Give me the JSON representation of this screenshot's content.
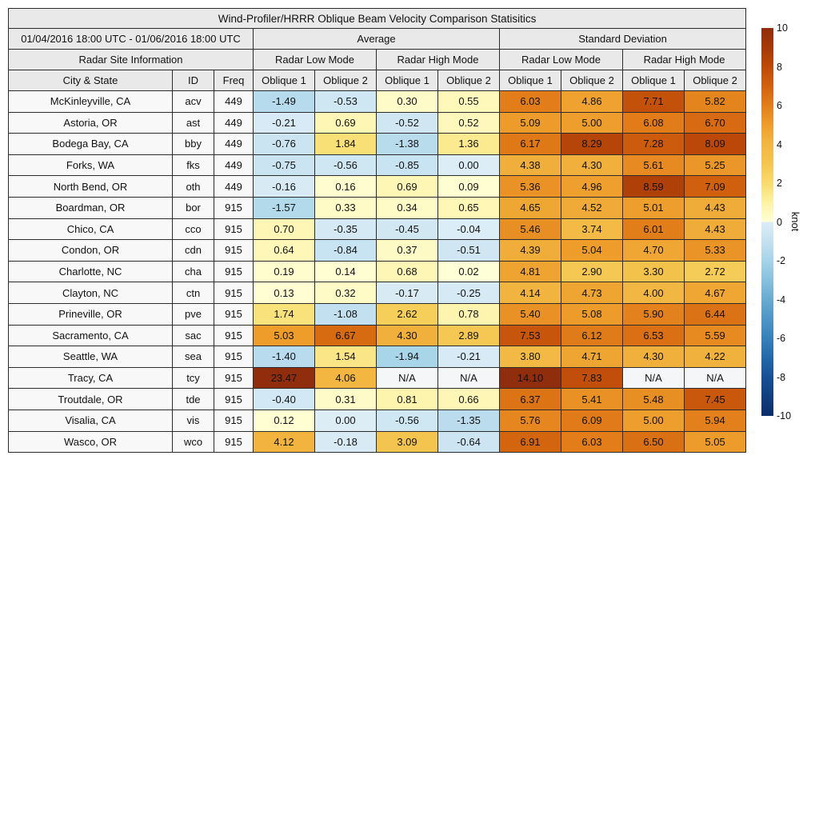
{
  "chart_data": {
    "type": "heatmap_table",
    "title": "Wind-Profiler/HRRR Oblique Beam Velocity Comparison Statisitics",
    "header": {
      "date_range": "01/04/2016 18:00 UTC - 01/06/2016 18:00 UTC",
      "group_average": "Average",
      "group_std": "Standard Deviation",
      "site_info": "Radar Site Information",
      "mode_low": "Radar Low Mode",
      "mode_high": "Radar High Mode",
      "col_city": "City & State",
      "col_id": "ID",
      "col_freq": "Freq",
      "col_oblique1": "Oblique 1",
      "col_oblique2": "Oblique 2"
    },
    "value_columns": [
      "avg_low_oblique1",
      "avg_low_oblique2",
      "avg_high_oblique1",
      "avg_high_oblique2",
      "std_low_oblique1",
      "std_low_oblique2",
      "std_high_oblique1",
      "std_high_oblique2"
    ],
    "rows": [
      {
        "city": "McKinleyville, CA",
        "id": "acv",
        "freq": "449",
        "values": [
          "-1.49",
          "-0.53",
          "0.30",
          "0.55",
          "6.03",
          "4.86",
          "7.71",
          "5.82"
        ]
      },
      {
        "city": "Astoria, OR",
        "id": "ast",
        "freq": "449",
        "values": [
          "-0.21",
          "0.69",
          "-0.52",
          "0.52",
          "5.09",
          "5.00",
          "6.08",
          "6.70"
        ]
      },
      {
        "city": "Bodega Bay, CA",
        "id": "bby",
        "freq": "449",
        "values": [
          "-0.76",
          "1.84",
          "-1.38",
          "1.36",
          "6.17",
          "8.29",
          "7.28",
          "8.09"
        ]
      },
      {
        "city": "Forks, WA",
        "id": "fks",
        "freq": "449",
        "values": [
          "-0.75",
          "-0.56",
          "-0.85",
          "0.00",
          "4.38",
          "4.30",
          "5.61",
          "5.25"
        ]
      },
      {
        "city": "North Bend, OR",
        "id": "oth",
        "freq": "449",
        "values": [
          "-0.16",
          "0.16",
          "0.69",
          "0.09",
          "5.36",
          "4.96",
          "8.59",
          "7.09"
        ]
      },
      {
        "city": "Boardman, OR",
        "id": "bor",
        "freq": "915",
        "values": [
          "-1.57",
          "0.33",
          "0.34",
          "0.65",
          "4.65",
          "4.52",
          "5.01",
          "4.43"
        ]
      },
      {
        "city": "Chico, CA",
        "id": "cco",
        "freq": "915",
        "values": [
          "0.70",
          "-0.35",
          "-0.45",
          "-0.04",
          "5.46",
          "3.74",
          "6.01",
          "4.43"
        ]
      },
      {
        "city": "Condon, OR",
        "id": "cdn",
        "freq": "915",
        "values": [
          "0.64",
          "-0.84",
          "0.37",
          "-0.51",
          "4.39",
          "5.04",
          "4.70",
          "5.33"
        ]
      },
      {
        "city": "Charlotte, NC",
        "id": "cha",
        "freq": "915",
        "values": [
          "0.19",
          "0.14",
          "0.68",
          "0.02",
          "4.81",
          "2.90",
          "3.30",
          "2.72"
        ]
      },
      {
        "city": "Clayton, NC",
        "id": "ctn",
        "freq": "915",
        "values": [
          "0.13",
          "0.32",
          "-0.17",
          "-0.25",
          "4.14",
          "4.73",
          "4.00",
          "4.67"
        ]
      },
      {
        "city": "Prineville, OR",
        "id": "pve",
        "freq": "915",
        "values": [
          "1.74",
          "-1.08",
          "2.62",
          "0.78",
          "5.40",
          "5.08",
          "5.90",
          "6.44"
        ]
      },
      {
        "city": "Sacramento, CA",
        "id": "sac",
        "freq": "915",
        "values": [
          "5.03",
          "6.67",
          "4.30",
          "2.89",
          "7.53",
          "6.12",
          "6.53",
          "5.59"
        ]
      },
      {
        "city": "Seattle, WA",
        "id": "sea",
        "freq": "915",
        "values": [
          "-1.40",
          "1.54",
          "-1.94",
          "-0.21",
          "3.80",
          "4.71",
          "4.30",
          "4.22"
        ]
      },
      {
        "city": "Tracy, CA",
        "id": "tcy",
        "freq": "915",
        "values": [
          "23.47",
          "4.06",
          "N/A",
          "N/A",
          "14.10",
          "7.83",
          "N/A",
          "N/A"
        ]
      },
      {
        "city": "Troutdale, OR",
        "id": "tde",
        "freq": "915",
        "values": [
          "-0.40",
          "0.31",
          "0.81",
          "0.66",
          "6.37",
          "5.41",
          "5.48",
          "7.45"
        ]
      },
      {
        "city": "Visalia, CA",
        "id": "vis",
        "freq": "915",
        "values": [
          "0.12",
          "0.00",
          "-0.56",
          "-1.35",
          "5.76",
          "6.09",
          "5.00",
          "5.94"
        ]
      },
      {
        "city": "Wasco, OR",
        "id": "wco",
        "freq": "915",
        "values": [
          "4.12",
          "-0.18",
          "3.09",
          "-0.64",
          "6.91",
          "6.03",
          "6.50",
          "5.05"
        ]
      }
    ],
    "colorbar": {
      "unit": "knot",
      "min": -10,
      "max": 10,
      "ticks": [
        "10",
        "8",
        "6",
        "4",
        "2",
        "0",
        "-2",
        "-4",
        "-6",
        "-8",
        "-10"
      ]
    },
    "colormap": {
      "na_color": "#f5f6f7",
      "warm": [
        "#ffffd8",
        "#fdf2a4",
        "#f8dc6d",
        "#f4c64f",
        "#f2b742",
        "#ee9e2c",
        "#e27e1a",
        "#d2620e",
        "#bd4a09",
        "#a53908",
        "#8f2d0c"
      ],
      "cool": [
        "#dcedf6",
        "#c4e1f0",
        "#a6d4e8",
        "#87c0df",
        "#68aad0",
        "#4f96c6",
        "#3781bb",
        "#2468a9",
        "#175096",
        "#103f80",
        "#0b2e68"
      ]
    },
    "styles": {
      "header_bg": "#e9e9e9",
      "label_bg": "#f8f8f8",
      "border": "#2b2b2b"
    }
  }
}
